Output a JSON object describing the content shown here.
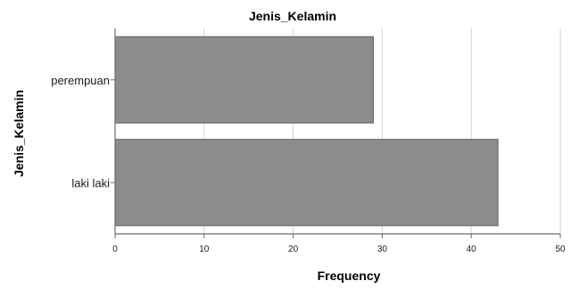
{
  "chart_data": {
    "type": "bar",
    "orientation": "horizontal",
    "title": "Jenis_Kelamin",
    "xlabel": "Frequency",
    "ylabel": "Jenis_Kelamin",
    "categories": [
      "perempuan",
      "laki laki"
    ],
    "values": [
      29,
      43
    ],
    "xlim": [
      0,
      50
    ],
    "x_ticks": [
      "0",
      "10",
      "20",
      "30",
      "40",
      "50"
    ],
    "grid": "vertical",
    "legend": "none"
  },
  "colors": {
    "bar_fill": "#8c8c8c",
    "bar_stroke": "#5e5e5e",
    "grid": "#d2d2d2",
    "axis": "#6b6b6b"
  }
}
